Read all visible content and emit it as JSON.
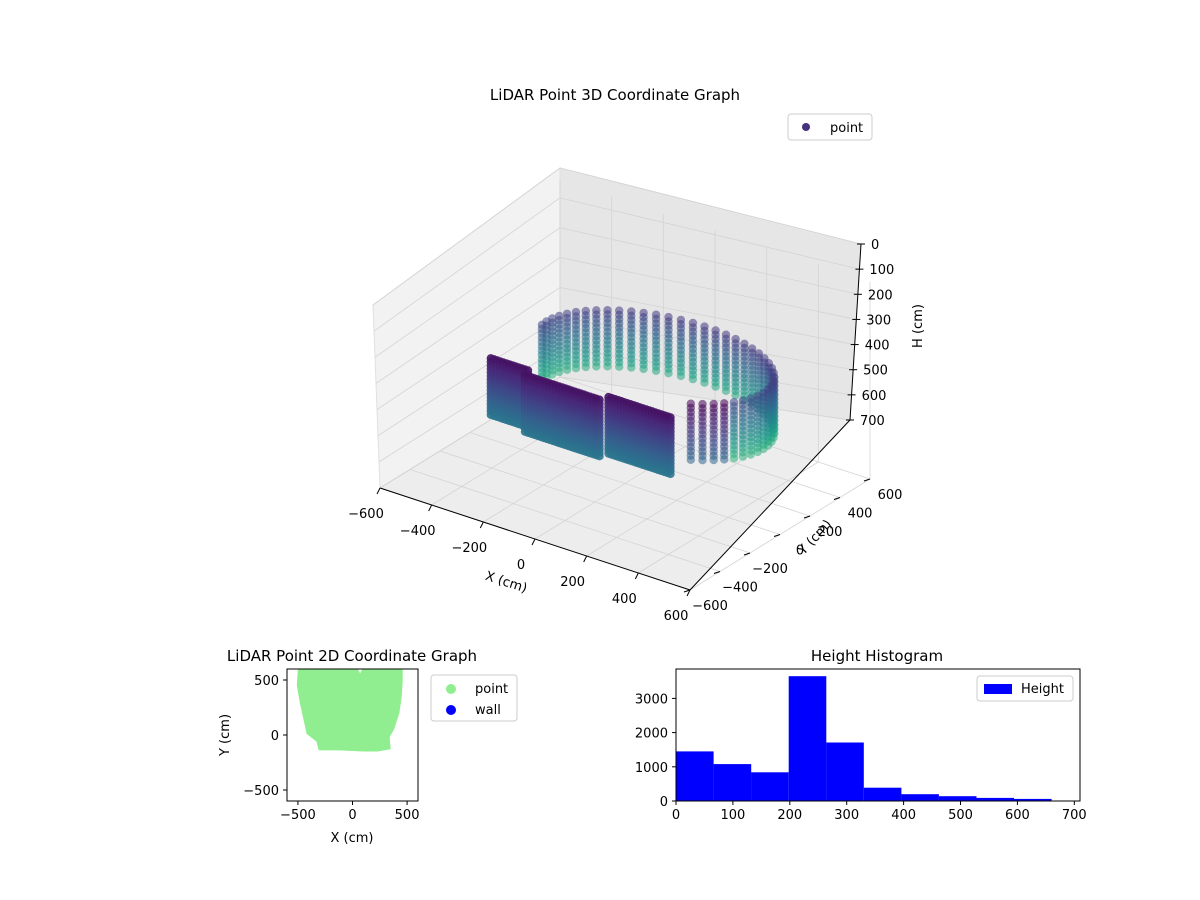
{
  "chart_data": [
    {
      "type": "scatter",
      "projection": "3d",
      "title": "LiDAR Point 3D Coordinate Graph",
      "xlabel": "X (cm)",
      "ylabel": "Y (cm)",
      "zlabel": "H (cm)",
      "xlim": [
        -600,
        600
      ],
      "ylim": [
        -600,
        600
      ],
      "zlim": [
        0,
        700
      ],
      "z_inverted": true,
      "x_ticks": [
        -600,
        -400,
        -200,
        0,
        200,
        400,
        600
      ],
      "y_ticks": [
        -600,
        -400,
        -200,
        0,
        200,
        400,
        600
      ],
      "z_ticks": [
        0,
        100,
        200,
        300,
        400,
        500,
        600,
        700
      ],
      "colormap": "viridis",
      "grid": true,
      "legend": {
        "placement": "upper right",
        "entries": [
          {
            "label": "point",
            "color": "#46337e"
          }
        ]
      },
      "description_series": "Points lie on a ring-shaped wall: a dense front segment (x from about -450 to 250, y about -100) and a back arc of vertical point columns.",
      "series": [
        {
          "name": "point",
          "ring": {
            "center": [
              0,
              200
            ],
            "radius_x": 420,
            "radius_y": 330,
            "height_range": [
              150,
              450
            ]
          },
          "front_wall": {
            "x_range": [
              -450,
              250
            ],
            "y": -120,
            "height_range": [
              200,
              500
            ]
          }
        }
      ]
    },
    {
      "type": "scatter",
      "title": "LiDAR Point 2D Coordinate Graph",
      "xlabel": "X (cm)",
      "ylabel": "Y (cm)",
      "xlim": [
        -600,
        600
      ],
      "ylim": [
        -600,
        600
      ],
      "x_ticks": [
        -500,
        0,
        500
      ],
      "y_ticks": [
        -500,
        0,
        500
      ],
      "legend": {
        "placement": "outside right",
        "entries": [
          {
            "label": "point",
            "color": "#90ee90"
          },
          {
            "label": "wall",
            "color": "#0000ff"
          }
        ]
      },
      "region": {
        "color": "#90ee90",
        "outline": [
          [
            -500,
            600
          ],
          [
            -510,
            450
          ],
          [
            -480,
            280
          ],
          [
            -440,
            100
          ],
          [
            -420,
            10
          ],
          [
            -330,
            -60
          ],
          [
            -310,
            -140
          ],
          [
            -120,
            -140
          ],
          [
            100,
            -150
          ],
          [
            230,
            -150
          ],
          [
            350,
            -130
          ],
          [
            340,
            -20
          ],
          [
            380,
            50
          ],
          [
            430,
            200
          ],
          [
            450,
            340
          ],
          [
            460,
            480
          ],
          [
            460,
            600
          ],
          [
            90,
            600
          ],
          [
            70,
            560
          ],
          [
            40,
            620
          ],
          [
            -100,
            600
          ]
        ]
      }
    },
    {
      "type": "histogram",
      "title": "Height Histogram",
      "xlabel": "",
      "ylabel": "",
      "bin_edges": [
        0,
        66,
        132,
        198,
        264,
        330,
        396,
        462,
        528,
        594,
        660
      ],
      "values": [
        1450,
        1080,
        840,
        3650,
        1710,
        390,
        200,
        140,
        90,
        60
      ],
      "color": "#0000ff",
      "xlim": [
        0,
        710
      ],
      "ylim": [
        0,
        3860
      ],
      "x_ticks": [
        0,
        100,
        200,
        300,
        400,
        500,
        600,
        700
      ],
      "y_ticks": [
        0,
        1000,
        2000,
        3000
      ],
      "legend": {
        "placement": "upper right",
        "entries": [
          {
            "label": "Height",
            "color": "#0000ff"
          }
        ]
      }
    }
  ]
}
